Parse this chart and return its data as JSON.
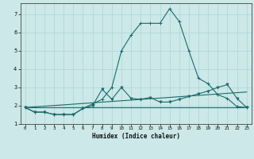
{
  "bg_color": "#cce8e8",
  "grid_color": "#aad4d4",
  "line_color": "#1a6b6b",
  "xlabel": "Humidex (Indice chaleur)",
  "xlim": [
    -0.5,
    23.5
  ],
  "ylim": [
    1.0,
    7.6
  ],
  "yticks": [
    1,
    2,
    3,
    4,
    5,
    6,
    7
  ],
  "xticks": [
    0,
    1,
    2,
    3,
    4,
    5,
    6,
    7,
    8,
    9,
    10,
    11,
    12,
    13,
    14,
    15,
    16,
    17,
    18,
    19,
    20,
    21,
    22,
    23
  ],
  "line1_x": [
    0,
    1,
    2,
    3,
    4,
    5,
    6,
    7,
    8,
    9,
    10,
    11,
    12,
    13,
    14,
    15,
    16,
    17,
    18,
    19,
    20,
    21,
    22,
    23
  ],
  "line1_y": [
    1.9,
    1.65,
    1.65,
    1.52,
    1.52,
    1.52,
    1.85,
    2.1,
    2.35,
    3.0,
    5.0,
    5.85,
    6.5,
    6.5,
    6.5,
    7.3,
    6.6,
    5.0,
    3.5,
    3.2,
    2.6,
    2.4,
    1.95,
    1.9
  ],
  "line2_x": [
    0,
    23
  ],
  "line2_y": [
    1.9,
    1.9
  ],
  "line3_x": [
    0,
    1,
    2,
    3,
    4,
    5,
    6,
    7,
    8,
    9,
    10,
    11,
    12,
    13,
    14,
    15,
    16,
    17,
    18,
    19,
    20,
    21,
    22,
    23
  ],
  "line3_y": [
    1.9,
    1.65,
    1.65,
    1.52,
    1.52,
    1.52,
    1.85,
    2.0,
    2.9,
    2.35,
    3.0,
    2.4,
    2.35,
    2.45,
    2.2,
    2.2,
    2.35,
    2.5,
    2.65,
    2.8,
    3.0,
    3.15,
    2.4,
    1.9
  ],
  "line4_x": [
    0,
    23
  ],
  "line4_y": [
    1.9,
    2.75
  ]
}
